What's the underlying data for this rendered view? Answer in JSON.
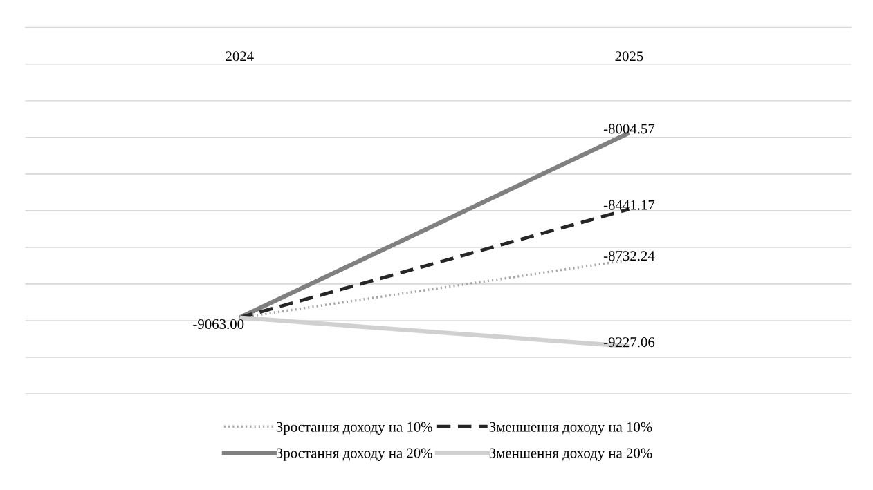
{
  "chart_data": {
    "type": "line",
    "categories": [
      "2024",
      "2025"
    ],
    "relative": false,
    "ylim": [
      -9500,
      -7400
    ],
    "yticks": [
      {
        "value": -9500,
        "label": null
      },
      {
        "value": -9290,
        "label": null
      },
      {
        "value": -9080,
        "label": null
      },
      {
        "value": -8870,
        "label": null
      },
      {
        "value": -8660,
        "label": null
      },
      {
        "value": -8450,
        "label": null
      },
      {
        "value": -8240,
        "label": null
      },
      {
        "value": -8030,
        "label": null
      },
      {
        "value": -7820,
        "label": null
      },
      {
        "value": -7610,
        "label": null
      },
      {
        "value": -7400,
        "label": null
      }
    ],
    "grid": "y",
    "legend": "bottom",
    "marker": "none",
    "series": [
      {
        "name": "Зростання доходу на 10%",
        "color": "#a5a5a5",
        "line_style": "dotted",
        "values": [
          -9063.0,
          -8732.24
        ],
        "value_labels": [
          null,
          "-8732.24"
        ]
      },
      {
        "name": "Зростання доходу на 20%",
        "color": "#808080",
        "line_style": "solid",
        "values": [
          -9063.0,
          -8004.57
        ],
        "value_labels": [
          null,
          "-8004.57"
        ]
      },
      {
        "name": "Зменшення доходу на 10%",
        "color": "#262626",
        "line_style": "dashed",
        "values": [
          -9063.0,
          -8441.17
        ],
        "value_labels": [
          null,
          "-8441.17"
        ]
      },
      {
        "name": "Зменшення доходу на 20%",
        "color": "#d0d0d0",
        "line_style": "solid",
        "values": [
          -9063.0,
          -9227.06
        ],
        "value_labels": [
          "-9063.00",
          "-9227.06"
        ]
      }
    ]
  }
}
